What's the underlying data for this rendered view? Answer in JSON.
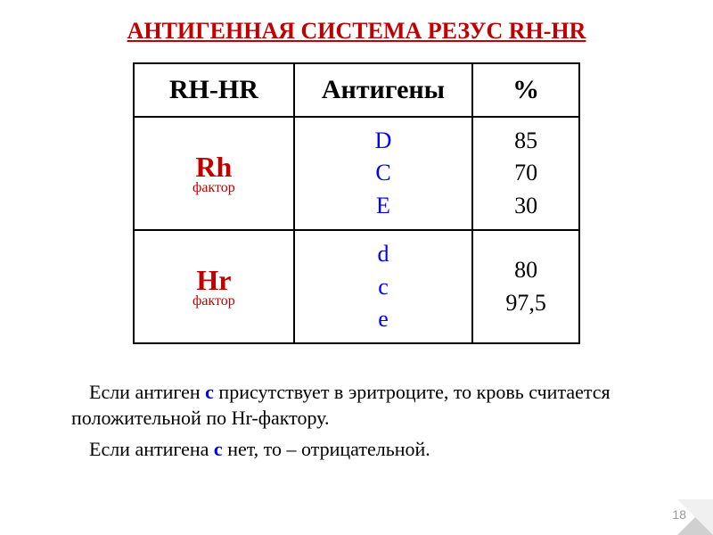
{
  "title": "АНТИГЕННАЯ СИСТЕМА РЕЗУС RH-HR",
  "table": {
    "headers": {
      "col1": "RH-HR",
      "col2": "Антигены",
      "col3": "%"
    },
    "rows": [
      {
        "label": "Rh",
        "sublabel": "фактор",
        "antigens": [
          "D",
          "C",
          "E"
        ],
        "percents": [
          "85",
          "70",
          "30"
        ]
      },
      {
        "label": "Hr",
        "sublabel": "фактор",
        "antigens": [
          "d",
          "c",
          "e"
        ],
        "percents": [
          "",
          "80",
          "97,5"
        ]
      }
    ]
  },
  "description": {
    "p1_before": "Если антиген ",
    "p1_highlight": "с",
    "p1_after": " присутствует в эритроците, то кровь считается положительной по Hr-фактору.",
    "p2_before": "Если антигена ",
    "p2_highlight": "с",
    "p2_after": " нет, то – отрицательной."
  },
  "page_number": "18",
  "styling": {
    "title_color": "#c00000",
    "label_color": "#c00000",
    "antigen_color": "#0000ff",
    "text_color": "#000000",
    "background_color": "#ffffff",
    "border_color": "#000000",
    "title_fontsize": 26,
    "header_fontsize": 30,
    "label_fontsize": 32,
    "cell_fontsize": 26,
    "description_fontsize": 22
  }
}
